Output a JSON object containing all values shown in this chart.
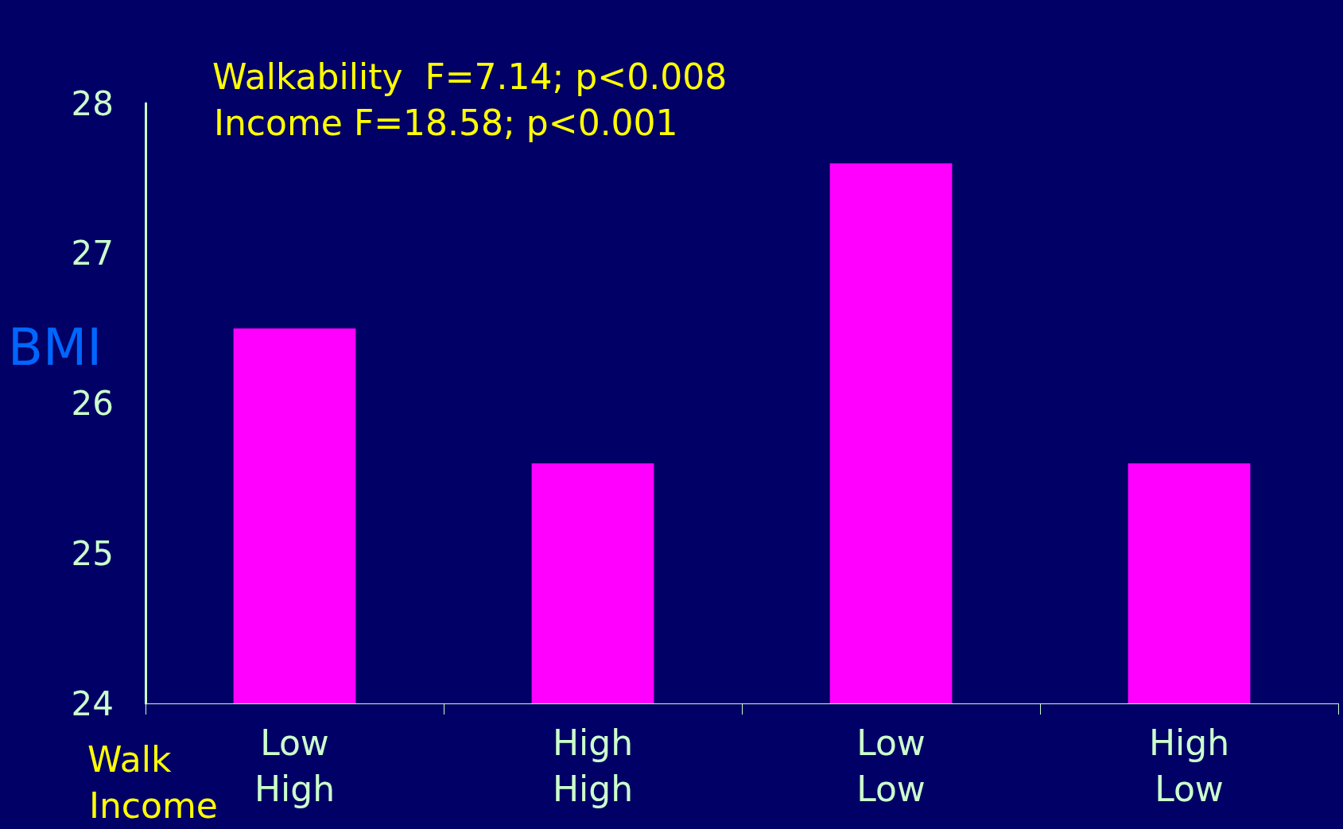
{
  "chart_data": {
    "type": "bar",
    "ylabel": "BMI",
    "annotations": [
      "Walkability  F=7.14; p<0.008",
      "Income F=18.58; p<0.001",
      "Walk",
      "Income"
    ],
    "categories": [
      "Low\nHigh",
      "High\nHigh",
      "Low\nLow",
      "High\nLow"
    ],
    "values": [
      26.5,
      25.6,
      27.6,
      25.6
    ],
    "color": "#ff00ff",
    "ylim": [
      24,
      28
    ],
    "yticks": [
      24,
      25,
      26,
      27,
      28
    ],
    "grid": false
  }
}
